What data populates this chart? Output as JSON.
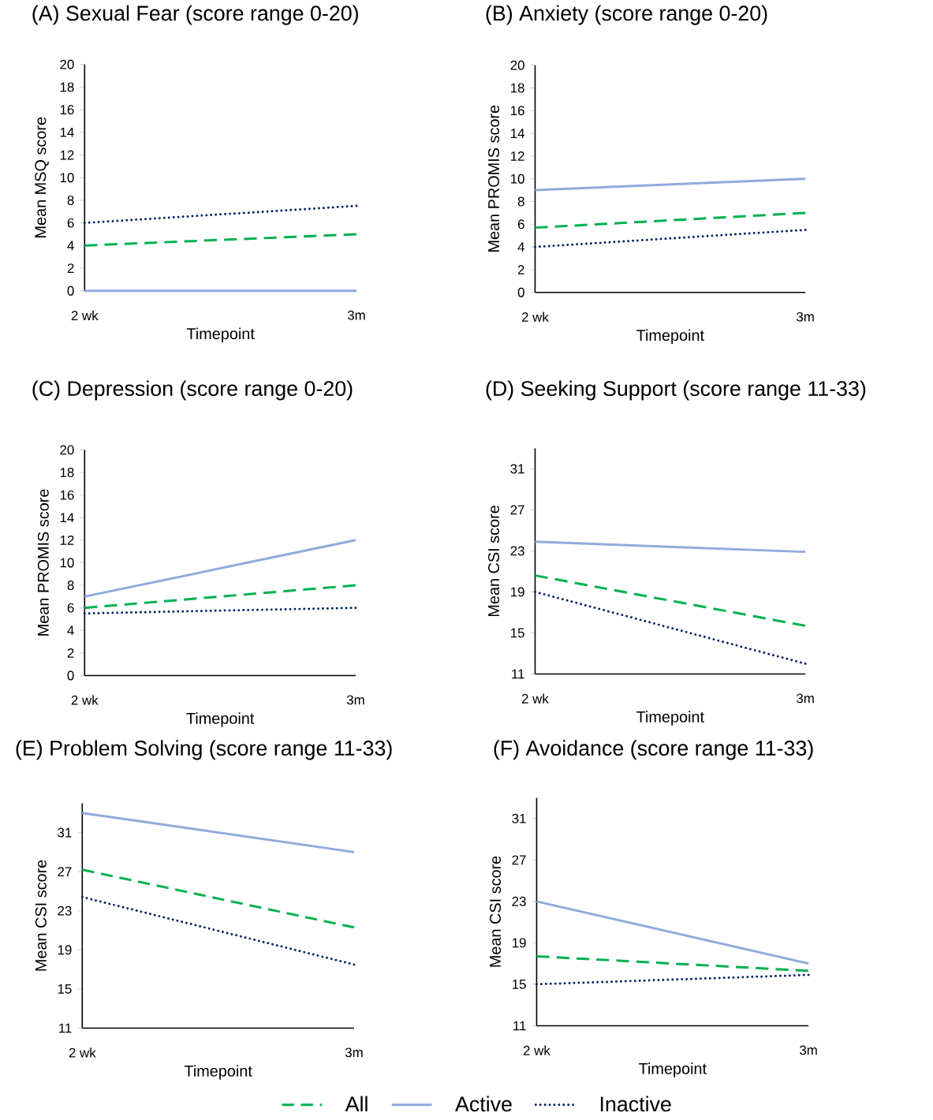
{
  "chart_data": [
    {
      "type": "line",
      "title": "(A) Sexual Fear (score range 0-20)",
      "xlabel": "Timepoint",
      "ylabel": "Mean MSQ score",
      "categories": [
        "2 wk",
        "3m"
      ],
      "ylim": [
        0,
        20
      ],
      "yticks": [
        0,
        2,
        4,
        6,
        8,
        10,
        12,
        14,
        16,
        18,
        20
      ],
      "series": [
        {
          "color": "#00b050",
          "line_style": "dashed",
          "values": [
            4,
            5
          ]
        },
        {
          "color": "#8faadc",
          "line_style": "solid",
          "values": [
            0,
            0
          ]
        },
        {
          "color": "#002060",
          "line_style": "dotted",
          "values": [
            6,
            7.5
          ]
        }
      ]
    },
    {
      "type": "line",
      "title": "(B) Anxiety (score range 0-20)",
      "xlabel": "Timepoint",
      "ylabel": "Mean PROMIS score",
      "categories": [
        "2 wk",
        "3m"
      ],
      "ylim": [
        0,
        20
      ],
      "yticks": [
        0,
        2,
        4,
        6,
        8,
        10,
        12,
        14,
        16,
        18,
        20
      ],
      "series": [
        {
          "color": "#00b050",
          "line_style": "dashed",
          "values": [
            5.7,
            7
          ]
        },
        {
          "color": "#8faadc",
          "line_style": "solid",
          "values": [
            9,
            10
          ]
        },
        {
          "color": "#002060",
          "line_style": "dotted",
          "values": [
            4,
            5.5
          ]
        }
      ]
    },
    {
      "type": "line",
      "title": "(C) Depression (score range 0-20)",
      "xlabel": "Timepoint",
      "ylabel": "Mean PROMIS score",
      "categories": [
        "2 wk",
        "3m"
      ],
      "ylim": [
        0,
        20
      ],
      "yticks": [
        0,
        2,
        4,
        6,
        8,
        10,
        12,
        14,
        16,
        18,
        20
      ],
      "series": [
        {
          "color": "#00b050",
          "line_style": "dashed",
          "values": [
            6,
            8
          ]
        },
        {
          "color": "#8faadc",
          "line_style": "solid",
          "values": [
            7,
            12
          ]
        },
        {
          "color": "#002060",
          "line_style": "dotted",
          "values": [
            5.5,
            6
          ]
        }
      ]
    },
    {
      "type": "line",
      "title": "(D) Seeking Support (score range 11-33)",
      "xlabel": "Timepoint",
      "ylabel": "Mean CSI score",
      "categories": [
        "2 wk",
        "3m"
      ],
      "ylim": [
        11,
        33
      ],
      "yticks": [
        11,
        15,
        19,
        23,
        27,
        31
      ],
      "series": [
        {
          "color": "#00b050",
          "line_style": "dashed",
          "values": [
            20.6,
            15.7
          ]
        },
        {
          "color": "#8faadc",
          "line_style": "solid",
          "values": [
            23.9,
            22.9
          ]
        },
        {
          "color": "#002060",
          "line_style": "dotted",
          "values": [
            19,
            12
          ]
        }
      ]
    },
    {
      "type": "line",
      "title": "(E) Problem Solving (score range 11-33)",
      "xlabel": "Timepoint",
      "ylabel": "Mean CSI score",
      "categories": [
        "2 wk",
        "3m"
      ],
      "ylim": [
        11,
        34
      ],
      "yticks": [
        11,
        15,
        19,
        23,
        27,
        31
      ],
      "legend": "bottom",
      "series": [
        {
          "name": "All",
          "color": "#00b050",
          "line_style": "dashed",
          "values": [
            27.2,
            21.3
          ]
        },
        {
          "name": "Active",
          "color": "#8faadc",
          "line_style": "solid",
          "values": [
            33,
            29
          ]
        },
        {
          "name": "Inactive",
          "color": "#002060",
          "line_style": "dotted",
          "values": [
            24.4,
            17.5
          ]
        }
      ]
    },
    {
      "type": "line",
      "title": "(F) Avoidance (score range 11-33)",
      "xlabel": "Timepoint",
      "ylabel": "Mean CSI score",
      "categories": [
        "2 wk",
        "3m"
      ],
      "ylim": [
        11,
        33
      ],
      "yticks": [
        11,
        15,
        19,
        23,
        27,
        31
      ],
      "series": [
        {
          "color": "#00b050",
          "line_style": "dashed",
          "values": [
            17.7,
            16.3
          ]
        },
        {
          "color": "#8faadc",
          "line_style": "solid",
          "values": [
            23,
            17
          ]
        },
        {
          "color": "#002060",
          "line_style": "dotted",
          "values": [
            15,
            15.9
          ]
        }
      ]
    }
  ]
}
